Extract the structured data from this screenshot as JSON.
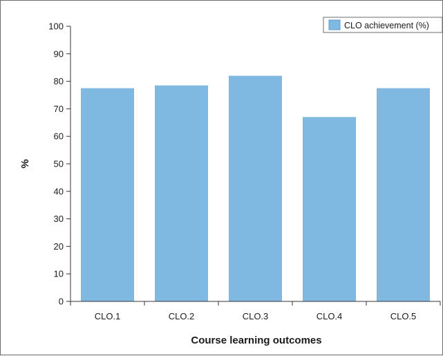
{
  "chart_data": {
    "type": "bar",
    "categories": [
      "CLO.1",
      "CLO.2",
      "CLO.3",
      "CLO.4",
      "CLO.5"
    ],
    "series": [
      {
        "name": "CLO achievement (%)",
        "values": [
          77.5,
          78.5,
          82,
          67,
          77.5
        ]
      }
    ],
    "xlabel": "Course learning outcomes",
    "ylabel": "%",
    "ylim": [
      0,
      100
    ],
    "yticks": [
      0,
      10,
      20,
      30,
      40,
      50,
      60,
      70,
      80,
      90,
      100
    ],
    "grid": false,
    "legend_position": "top-right",
    "colors": {
      "bar": "#7fb8e0",
      "bar_edge": "#5f9ccb",
      "axis": "#333333"
    }
  }
}
